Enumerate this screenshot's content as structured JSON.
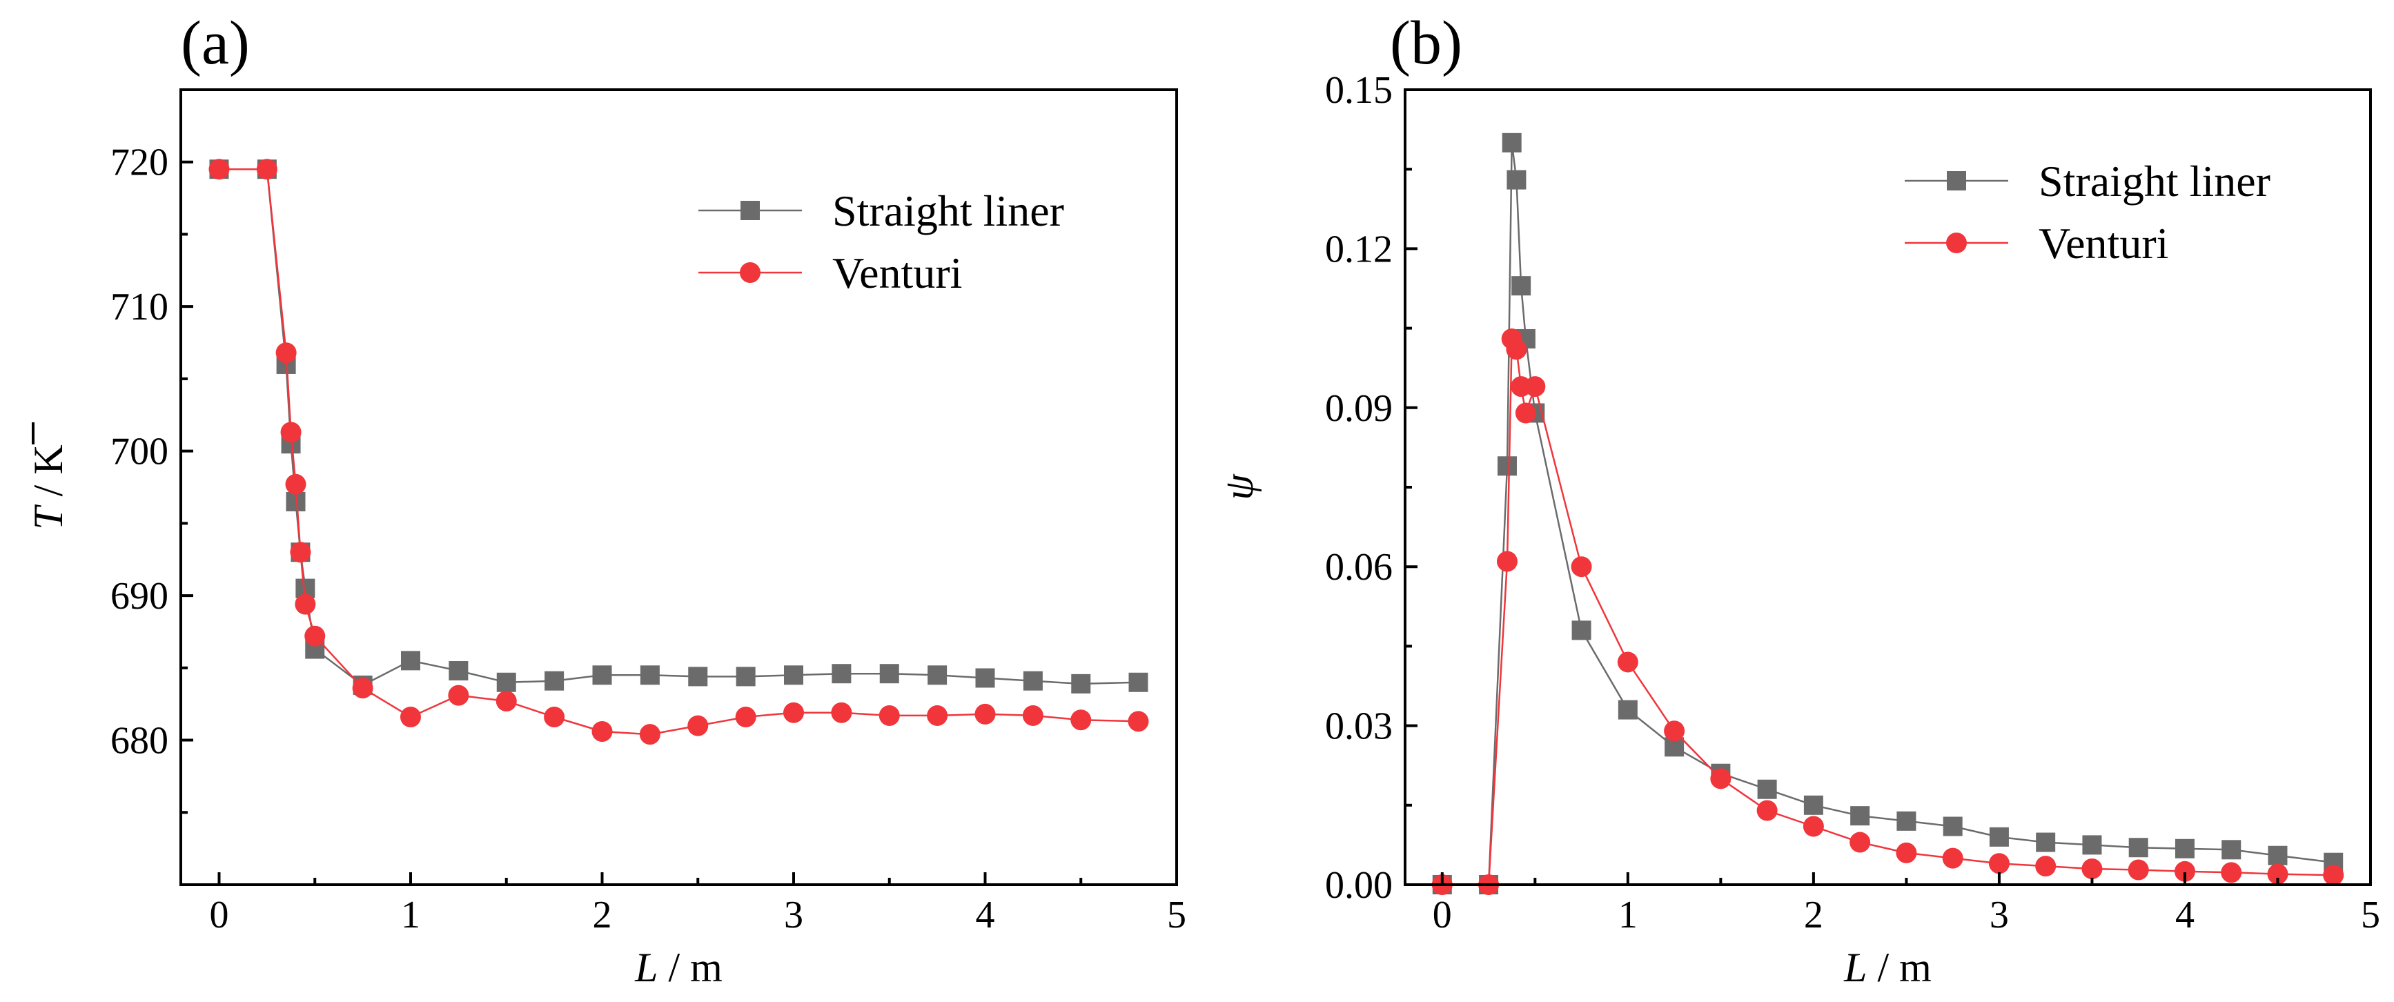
{
  "chart_data": [
    {
      "type": "line",
      "panel_label": "(a)",
      "title": "",
      "xlabel": "L / m",
      "ylabel": "T / K",
      "xlim": [
        -0.2,
        5
      ],
      "ylim": [
        670,
        725
      ],
      "xticks": [
        0,
        1,
        2,
        3,
        4,
        5
      ],
      "yticks": [
        680,
        690,
        700,
        710,
        720
      ],
      "grid": false,
      "legend_position": "top-right",
      "series": [
        {
          "name": "Straight liner",
          "color": "#6b6b6b",
          "marker": "square",
          "x": [
            0,
            0.25,
            0.35,
            0.375,
            0.4,
            0.425,
            0.45,
            0.5,
            0.75,
            1.0,
            1.25,
            1.5,
            1.75,
            2.0,
            2.25,
            2.5,
            2.75,
            3.0,
            3.25,
            3.5,
            3.75,
            4.0,
            4.25,
            4.5,
            4.8
          ],
          "y": [
            719.5,
            719.5,
            706.0,
            700.5,
            696.5,
            693.0,
            690.5,
            686.3,
            683.8,
            685.5,
            684.8,
            684.0,
            684.1,
            684.5,
            684.5,
            684.4,
            684.4,
            684.5,
            684.6,
            684.6,
            684.5,
            684.3,
            684.1,
            683.9,
            684.0
          ]
        },
        {
          "name": "Venturi",
          "color": "#f0353b",
          "marker": "circle",
          "x": [
            0,
            0.25,
            0.35,
            0.375,
            0.4,
            0.425,
            0.45,
            0.5,
            0.75,
            1.0,
            1.25,
            1.5,
            1.75,
            2.0,
            2.25,
            2.5,
            2.75,
            3.0,
            3.25,
            3.5,
            3.75,
            4.0,
            4.25,
            4.5,
            4.8
          ],
          "y": [
            719.5,
            719.5,
            706.8,
            701.3,
            697.7,
            693.0,
            689.4,
            687.2,
            683.6,
            681.6,
            683.1,
            682.7,
            681.6,
            680.6,
            680.4,
            681.0,
            681.6,
            681.9,
            681.9,
            681.7,
            681.7,
            681.8,
            681.7,
            681.4,
            681.3
          ]
        }
      ]
    },
    {
      "type": "line",
      "panel_label": "(b)",
      "title": "",
      "xlabel": "L / m",
      "ylabel": "ψ",
      "xlim": [
        -0.2,
        5
      ],
      "ylim": [
        0,
        0.15
      ],
      "xticks": [
        0,
        1,
        2,
        3,
        4,
        5
      ],
      "yticks": [
        0.0,
        0.03,
        0.06,
        0.09,
        0.12,
        0.15
      ],
      "grid": false,
      "legend_position": "top-right",
      "series": [
        {
          "name": "Straight liner",
          "color": "#6b6b6b",
          "marker": "square",
          "x": [
            0,
            0.25,
            0.35,
            0.375,
            0.4,
            0.425,
            0.45,
            0.5,
            0.75,
            1.0,
            1.25,
            1.5,
            1.75,
            2.0,
            2.25,
            2.5,
            2.75,
            3.0,
            3.25,
            3.5,
            3.75,
            4.0,
            4.25,
            4.5,
            4.8
          ],
          "y": [
            0.0,
            0.0,
            0.079,
            0.14,
            0.133,
            0.113,
            0.103,
            0.089,
            0.048,
            0.033,
            0.026,
            0.021,
            0.018,
            0.015,
            0.013,
            0.012,
            0.011,
            0.009,
            0.008,
            0.0075,
            0.007,
            0.0068,
            0.0066,
            0.0055,
            0.0042
          ]
        },
        {
          "name": "Venturi",
          "color": "#f0353b",
          "marker": "circle",
          "x": [
            0,
            0.25,
            0.35,
            0.375,
            0.4,
            0.425,
            0.45,
            0.5,
            0.75,
            1.0,
            1.25,
            1.5,
            1.75,
            2.0,
            2.25,
            2.5,
            2.75,
            3.0,
            3.25,
            3.5,
            3.75,
            4.0,
            4.25,
            4.5,
            4.8
          ],
          "y": [
            0.0,
            0.0,
            0.061,
            0.103,
            0.101,
            0.094,
            0.089,
            0.094,
            0.06,
            0.042,
            0.029,
            0.02,
            0.014,
            0.011,
            0.008,
            0.006,
            0.005,
            0.004,
            0.0035,
            0.003,
            0.0028,
            0.0025,
            0.0023,
            0.002,
            0.0018
          ]
        }
      ]
    }
  ]
}
